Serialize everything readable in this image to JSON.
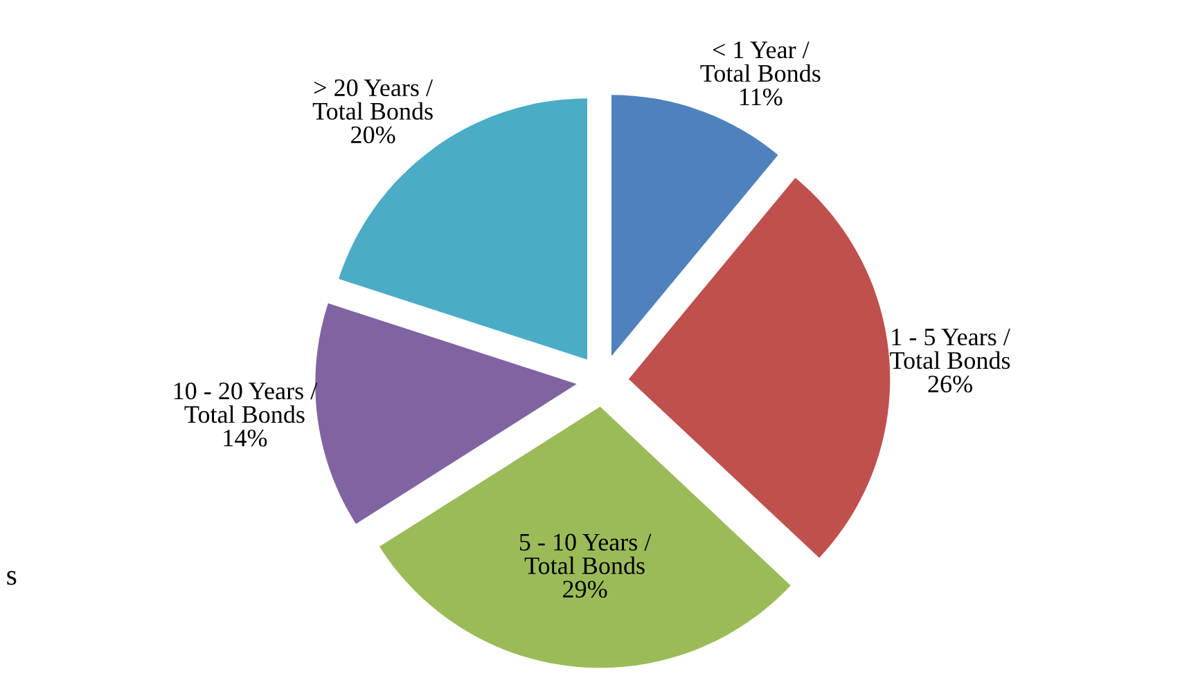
{
  "chart_data": {
    "type": "pie",
    "categories": [
      "< 1 Year / Total Bonds",
      "1 - 5 Years / Total Bonds",
      "5 - 10 Years / Total Bonds",
      "10 - 20 Years / Total Bonds",
      "> 20 Years / Total Bonds"
    ],
    "values": [
      11,
      26,
      29,
      14,
      20
    ],
    "colors": [
      "#4f81bd",
      "#c0504d",
      "#9bbb59",
      "#8064a2",
      "#4bacc6"
    ],
    "value_labels": [
      "11%",
      "26%",
      "29%",
      "14%",
      "20%"
    ],
    "legend": false,
    "annotations": [
      "s"
    ]
  }
}
